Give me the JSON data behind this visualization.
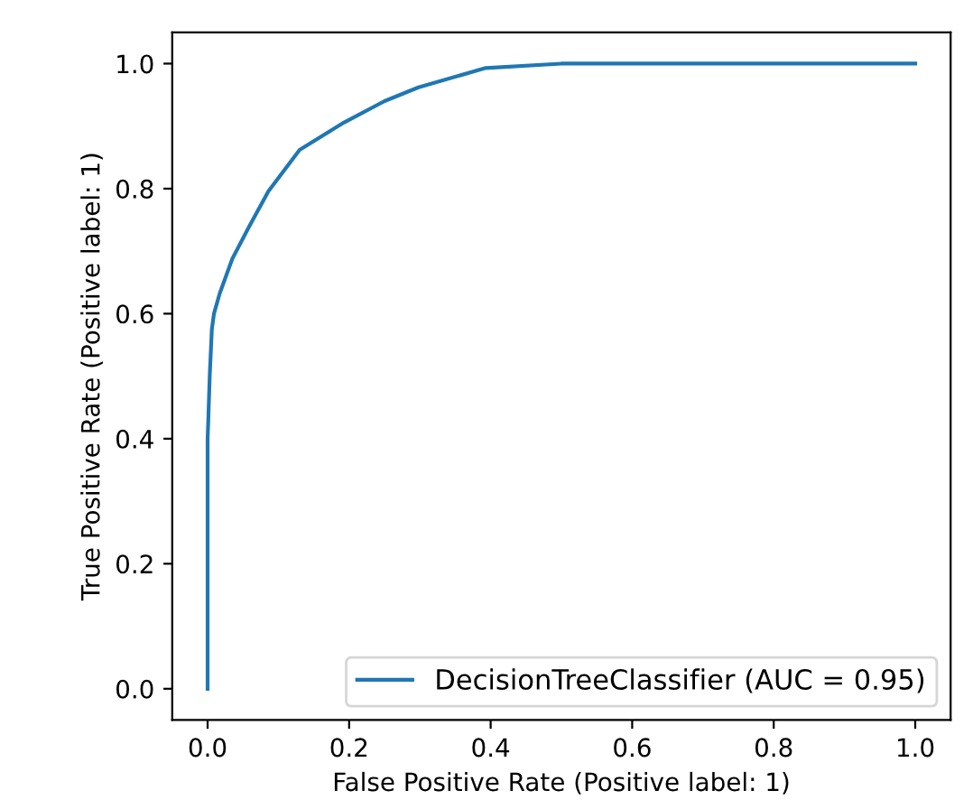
{
  "chart_data": {
    "type": "line",
    "xlabel": "False Positive Rate (Positive label: 1)",
    "ylabel": "True Positive Rate (Positive label: 1)",
    "xlim": [
      -0.05,
      1.05
    ],
    "ylim": [
      -0.05,
      1.05
    ],
    "xticks": [
      {
        "value": 0,
        "label": "0.0"
      },
      0.2,
      0.4,
      0.6,
      0.8,
      {
        "value": 1,
        "label": "1.0"
      }
    ],
    "yticks": [
      {
        "value": 0,
        "label": "0.0"
      },
      0.2,
      0.4,
      0.6,
      0.8,
      {
        "value": 1,
        "label": "1.0"
      }
    ],
    "grid": false,
    "legend": "bottom right",
    "marker": "none",
    "line_style": "solid",
    "series": [
      {
        "name": "DecisionTreeClassifier (AUC = 0.95)",
        "color": "#1f77b4",
        "x": [
          0,
          0,
          0.001,
          0.003,
          0.006,
          0.009,
          0.017,
          0.035,
          0.059,
          0.086,
          0.13,
          0.193,
          0.25,
          0.298,
          0.393,
          0.5,
          1
        ],
        "values": [
          0,
          0.4,
          0.43,
          0.5,
          0.575,
          0.6,
          0.632,
          0.688,
          0.74,
          0.796,
          0.862,
          0.906,
          0.94,
          0.962,
          0.993,
          1,
          1
        ]
      }
    ]
  }
}
